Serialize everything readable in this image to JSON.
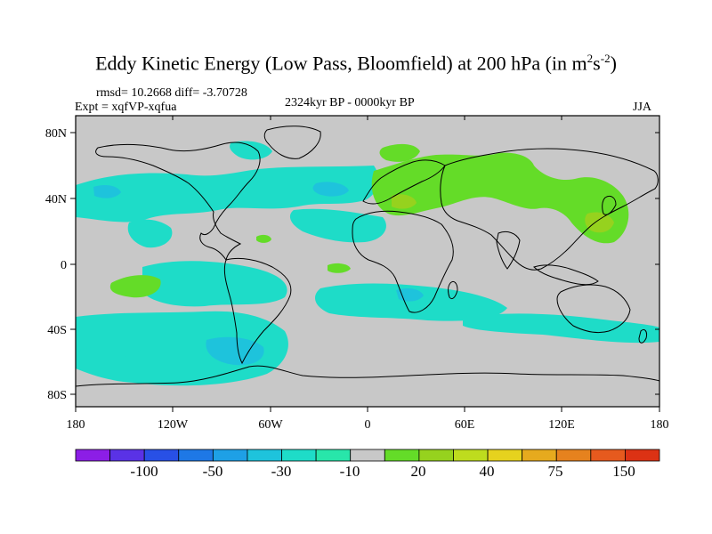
{
  "header": {
    "title_prefix": "Eddy Kinetic Energy (Low Pass, Bloomfield) at 200 hPa (in m",
    "title_exp1": "2",
    "title_mid": "s",
    "title_exp2": "-2",
    "title_suffix": ")",
    "stats": "rmsd= 10.2668 diff= -3.70728",
    "experiment": "Expt = xqfVP-xqfua",
    "period": "2324kyr BP - 0000kyr BP",
    "season": "JJA"
  },
  "axes": {
    "lat_labels": [
      "80N",
      "40N",
      "0",
      "40S",
      "80S"
    ],
    "lon_labels": [
      "180",
      "120W",
      "60W",
      "0",
      "60E",
      "120E",
      "180"
    ]
  },
  "colorbar": {
    "colors": [
      "#8c1ee6",
      "#5a32e6",
      "#2850e6",
      "#1e78e6",
      "#1ea0e6",
      "#1ec3dc",
      "#1edcc8",
      "#28e6aa",
      "#c8c8c8",
      "#64dc28",
      "#96d21e",
      "#bedc1e",
      "#e6d21e",
      "#e6aa1e",
      "#e6821e",
      "#e65a1e",
      "#dc3214"
    ],
    "labels": [
      "-100",
      "-50",
      "-30",
      "-10",
      "20",
      "40",
      "75",
      "150"
    ]
  },
  "map": {
    "background_color": "#c8c8c8",
    "coast_color": "#000000"
  }
}
